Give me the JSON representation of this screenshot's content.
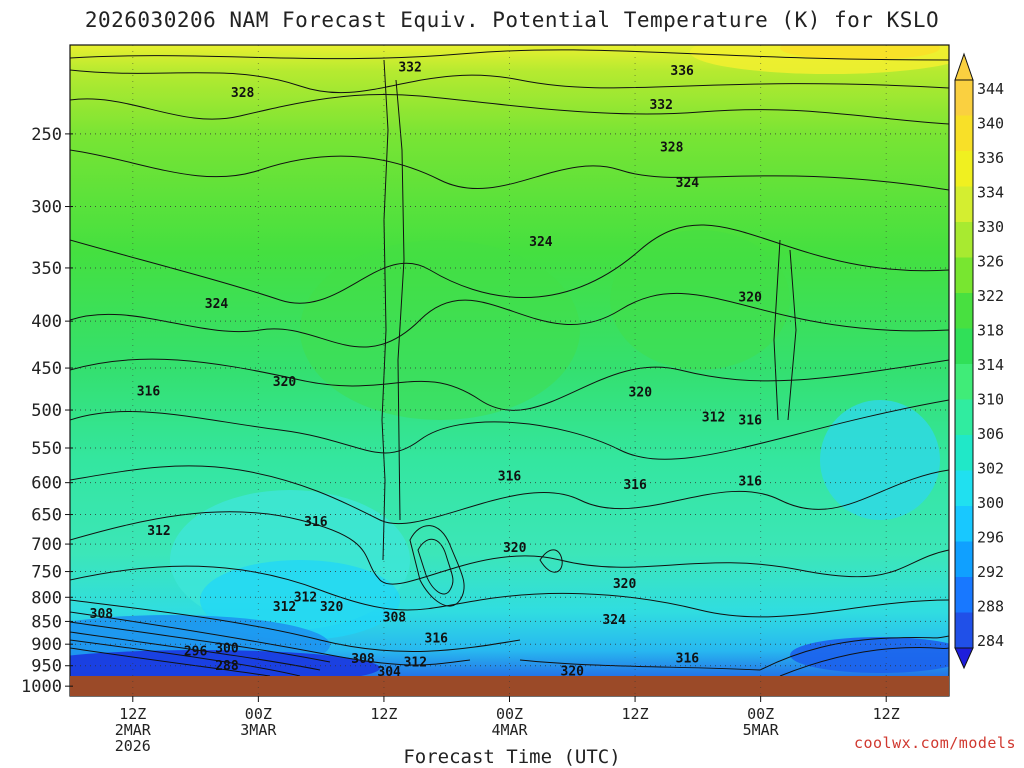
{
  "chart_data": {
    "type": "heatmap",
    "title": "2026030206 NAM Forecast Equiv. Potential Temperature (K) for KSLO",
    "xlabel": "Forecast Time (UTC)",
    "ylabel": "",
    "x_ticks": [
      {
        "label": [
          "12Z",
          "2MAR",
          "2026"
        ],
        "hour": 6
      },
      {
        "label": [
          "00Z",
          "3MAR"
        ],
        "hour": 18
      },
      {
        "label": [
          "12Z"
        ],
        "hour": 30
      },
      {
        "label": [
          "00Z",
          "4MAR"
        ],
        "hour": 42
      },
      {
        "label": [
          "12Z"
        ],
        "hour": 54
      },
      {
        "label": [
          "00Z",
          "5MAR"
        ],
        "hour": 66
      },
      {
        "label": [
          "12Z"
        ],
        "hour": 78
      }
    ],
    "xlim": [
      0,
      84
    ],
    "y_ticks": [
      250,
      300,
      350,
      400,
      450,
      500,
      550,
      600,
      650,
      700,
      750,
      800,
      850,
      900,
      950,
      1000
    ],
    "ylim_hpa": [
      200,
      1025
    ],
    "colorbar": {
      "levels": [
        284,
        288,
        292,
        296,
        300,
        302,
        306,
        310,
        314,
        318,
        322,
        326,
        330,
        334,
        336,
        340,
        344
      ],
      "colors": [
        "#1e1edc",
        "#2050e8",
        "#1878ff",
        "#10a0ff",
        "#18c8ff",
        "#20e0f0",
        "#20e8c8",
        "#30eca0",
        "#40ec78",
        "#30e058",
        "#48e040",
        "#78e630",
        "#a8ea30",
        "#d4ee30",
        "#f0f020",
        "#f8e028",
        "#fad040"
      ]
    },
    "contour_labels": [
      {
        "text": "332",
        "hour": 32.5,
        "hpa": 211
      },
      {
        "text": "336",
        "hour": 58.5,
        "hpa": 213
      },
      {
        "text": "328",
        "hour": 16.5,
        "hpa": 225
      },
      {
        "text": "332",
        "hour": 56.5,
        "hpa": 232
      },
      {
        "text": "328",
        "hour": 57.5,
        "hpa": 258
      },
      {
        "text": "324",
        "hour": 59,
        "hpa": 282
      },
      {
        "text": "324",
        "hour": 45,
        "hpa": 327
      },
      {
        "text": "324",
        "hour": 14,
        "hpa": 382
      },
      {
        "text": "320",
        "hour": 65,
        "hpa": 376
      },
      {
        "text": "320",
        "hour": 20.5,
        "hpa": 465
      },
      {
        "text": "316",
        "hour": 7.5,
        "hpa": 476
      },
      {
        "text": "320",
        "hour": 54.5,
        "hpa": 477
      },
      {
        "text": "312",
        "hour": 61.5,
        "hpa": 508
      },
      {
        "text": "316",
        "hour": 65,
        "hpa": 512
      },
      {
        "text": "316",
        "hour": 42,
        "hpa": 589
      },
      {
        "text": "316",
        "hour": 54,
        "hpa": 602
      },
      {
        "text": "316",
        "hour": 65,
        "hpa": 597
      },
      {
        "text": "316",
        "hour": 23.5,
        "hpa": 661
      },
      {
        "text": "312",
        "hour": 8.5,
        "hpa": 676
      },
      {
        "text": "320",
        "hour": 42.5,
        "hpa": 705
      },
      {
        "text": "320",
        "hour": 53,
        "hpa": 772
      },
      {
        "text": "312",
        "hour": 22.5,
        "hpa": 798
      },
      {
        "text": "312",
        "hour": 20.5,
        "hpa": 818
      },
      {
        "text": "320",
        "hour": 25,
        "hpa": 818
      },
      {
        "text": "308",
        "hour": 3,
        "hpa": 832
      },
      {
        "text": "308",
        "hour": 31,
        "hpa": 840
      },
      {
        "text": "324",
        "hour": 52,
        "hpa": 845
      },
      {
        "text": "316",
        "hour": 35,
        "hpa": 885
      },
      {
        "text": "296",
        "hour": 12,
        "hpa": 914
      },
      {
        "text": "300",
        "hour": 15,
        "hpa": 907
      },
      {
        "text": "288",
        "hour": 15,
        "hpa": 948
      },
      {
        "text": "308",
        "hour": 28,
        "hpa": 932
      },
      {
        "text": "312",
        "hour": 33,
        "hpa": 940
      },
      {
        "text": "304",
        "hour": 30.5,
        "hpa": 963
      },
      {
        "text": "320",
        "hour": 48,
        "hpa": 962
      },
      {
        "text": "316",
        "hour": 59,
        "hpa": 930
      }
    ]
  },
  "credit": "coolwx.com/models"
}
